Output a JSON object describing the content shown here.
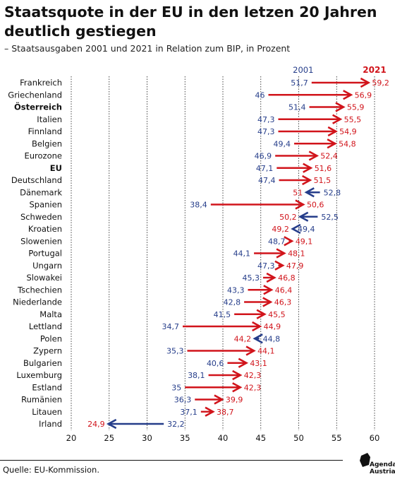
{
  "header": {
    "title": "Staatsquote in der EU in den letzen 20 Jahren deutlich gestiegen",
    "subtitle": "– Staatsausgaben 2001 und 2021 in Relation zum BIP, in Prozent"
  },
  "footer": {
    "source": "Quelle: EU-Kommission."
  },
  "logo": {
    "line1": "Agenda",
    "line2": "Austria"
  },
  "colors": {
    "series_2001": "#253d8a",
    "series_2021": "#d1141b",
    "grid": "#1a1a1a",
    "text": "#111111"
  },
  "chart_data": {
    "type": "dumbbell",
    "xlim": [
      20,
      60
    ],
    "x_ticks": [
      20,
      25,
      30,
      35,
      40,
      45,
      50,
      55,
      60
    ],
    "grid": true,
    "legend": [
      {
        "label": "2001",
        "color": "#253d8a"
      },
      {
        "label": "2021",
        "color": "#d1141b"
      }
    ],
    "rows": [
      {
        "country": "Frankreich",
        "bold": false,
        "v2001": 51.7,
        "v2021": 59.2,
        "l2001": "51,7",
        "l2021": "59,2"
      },
      {
        "country": "Griechenland",
        "bold": false,
        "v2001": 46,
        "v2021": 56.9,
        "l2001": "46",
        "l2021": "56,9"
      },
      {
        "country": "Österreich",
        "bold": true,
        "v2001": 51.4,
        "v2021": 55.9,
        "l2001": "51,4",
        "l2021": "55,9"
      },
      {
        "country": "Italien",
        "bold": false,
        "v2001": 47.3,
        "v2021": 55.5,
        "l2001": "47,3",
        "l2021": "55,5"
      },
      {
        "country": "Finnland",
        "bold": false,
        "v2001": 47.3,
        "v2021": 54.9,
        "l2001": "47,3",
        "l2021": "54,9"
      },
      {
        "country": "Belgien",
        "bold": false,
        "v2001": 49.4,
        "v2021": 54.8,
        "l2001": "49,4",
        "l2021": "54,8"
      },
      {
        "country": "Eurozone",
        "bold": false,
        "v2001": 46.9,
        "v2021": 52.4,
        "l2001": "46,9",
        "l2021": "52,4"
      },
      {
        "country": "EU",
        "bold": true,
        "v2001": 47.1,
        "v2021": 51.6,
        "l2001": "47,1",
        "l2021": "51,6"
      },
      {
        "country": "Deutschland",
        "bold": false,
        "v2001": 47.4,
        "v2021": 51.5,
        "l2001": "47,4",
        "l2021": "51,5"
      },
      {
        "country": "Dänemark",
        "bold": false,
        "v2001": 52.8,
        "v2021": 51,
        "l2001": "52,8",
        "l2021": "51"
      },
      {
        "country": "Spanien",
        "bold": false,
        "v2001": 38.4,
        "v2021": 50.6,
        "l2001": "38,4",
        "l2021": "50,6"
      },
      {
        "country": "Schweden",
        "bold": false,
        "v2001": 52.5,
        "v2021": 50.2,
        "l2001": "52,5",
        "l2021": "50,2"
      },
      {
        "country": "Kroatien",
        "bold": false,
        "v2001": 49.4,
        "v2021": 49.2,
        "l2001": "49,4",
        "l2021": "49,2"
      },
      {
        "country": "Slowenien",
        "bold": false,
        "v2001": 48.7,
        "v2021": 49.1,
        "l2001": "48,7",
        "l2021": "49,1"
      },
      {
        "country": "Portugal",
        "bold": false,
        "v2001": 44.1,
        "v2021": 48.1,
        "l2001": "44,1",
        "l2021": "48,1"
      },
      {
        "country": "Ungarn",
        "bold": false,
        "v2001": 47.3,
        "v2021": 47.9,
        "l2001": "47,3",
        "l2021": "47,9"
      },
      {
        "country": "Slowakei",
        "bold": false,
        "v2001": 45.3,
        "v2021": 46.8,
        "l2001": "45,3",
        "l2021": "46,8"
      },
      {
        "country": "Tschechien",
        "bold": false,
        "v2001": 43.3,
        "v2021": 46.4,
        "l2001": "43,3",
        "l2021": "46,4"
      },
      {
        "country": "Niederlande",
        "bold": false,
        "v2001": 42.8,
        "v2021": 46.3,
        "l2001": "42,8",
        "l2021": "46,3"
      },
      {
        "country": "Malta",
        "bold": false,
        "v2001": 41.5,
        "v2021": 45.5,
        "l2001": "41,5",
        "l2021": "45,5"
      },
      {
        "country": "Lettland",
        "bold": false,
        "v2001": 34.7,
        "v2021": 44.9,
        "l2001": "34,7",
        "l2021": "44,9"
      },
      {
        "country": "Polen",
        "bold": false,
        "v2001": 44.8,
        "v2021": 44.2,
        "l2001": "44,8",
        "l2021": "44,2"
      },
      {
        "country": "Zypern",
        "bold": false,
        "v2001": 35.3,
        "v2021": 44.1,
        "l2001": "35,3",
        "l2021": "44,1"
      },
      {
        "country": "Bulgarien",
        "bold": false,
        "v2001": 40.6,
        "v2021": 43.1,
        "l2001": "40,6",
        "l2021": "43,1"
      },
      {
        "country": "Luxemburg",
        "bold": false,
        "v2001": 38.1,
        "v2021": 42.3,
        "l2001": "38,1",
        "l2021": "42,3"
      },
      {
        "country": "Estland",
        "bold": false,
        "v2001": 35,
        "v2021": 42.3,
        "l2001": "35",
        "l2021": "42,3"
      },
      {
        "country": "Rumänien",
        "bold": false,
        "v2001": 36.3,
        "v2021": 39.9,
        "l2001": "36,3",
        "l2021": "39,9"
      },
      {
        "country": "Litauen",
        "bold": false,
        "v2001": 37.1,
        "v2021": 38.7,
        "l2001": "37,1",
        "l2021": "38,7"
      },
      {
        "country": "Irland",
        "bold": false,
        "v2001": 32.2,
        "v2021": 24.9,
        "l2001": "32,2",
        "l2021": "24,9"
      }
    ]
  }
}
